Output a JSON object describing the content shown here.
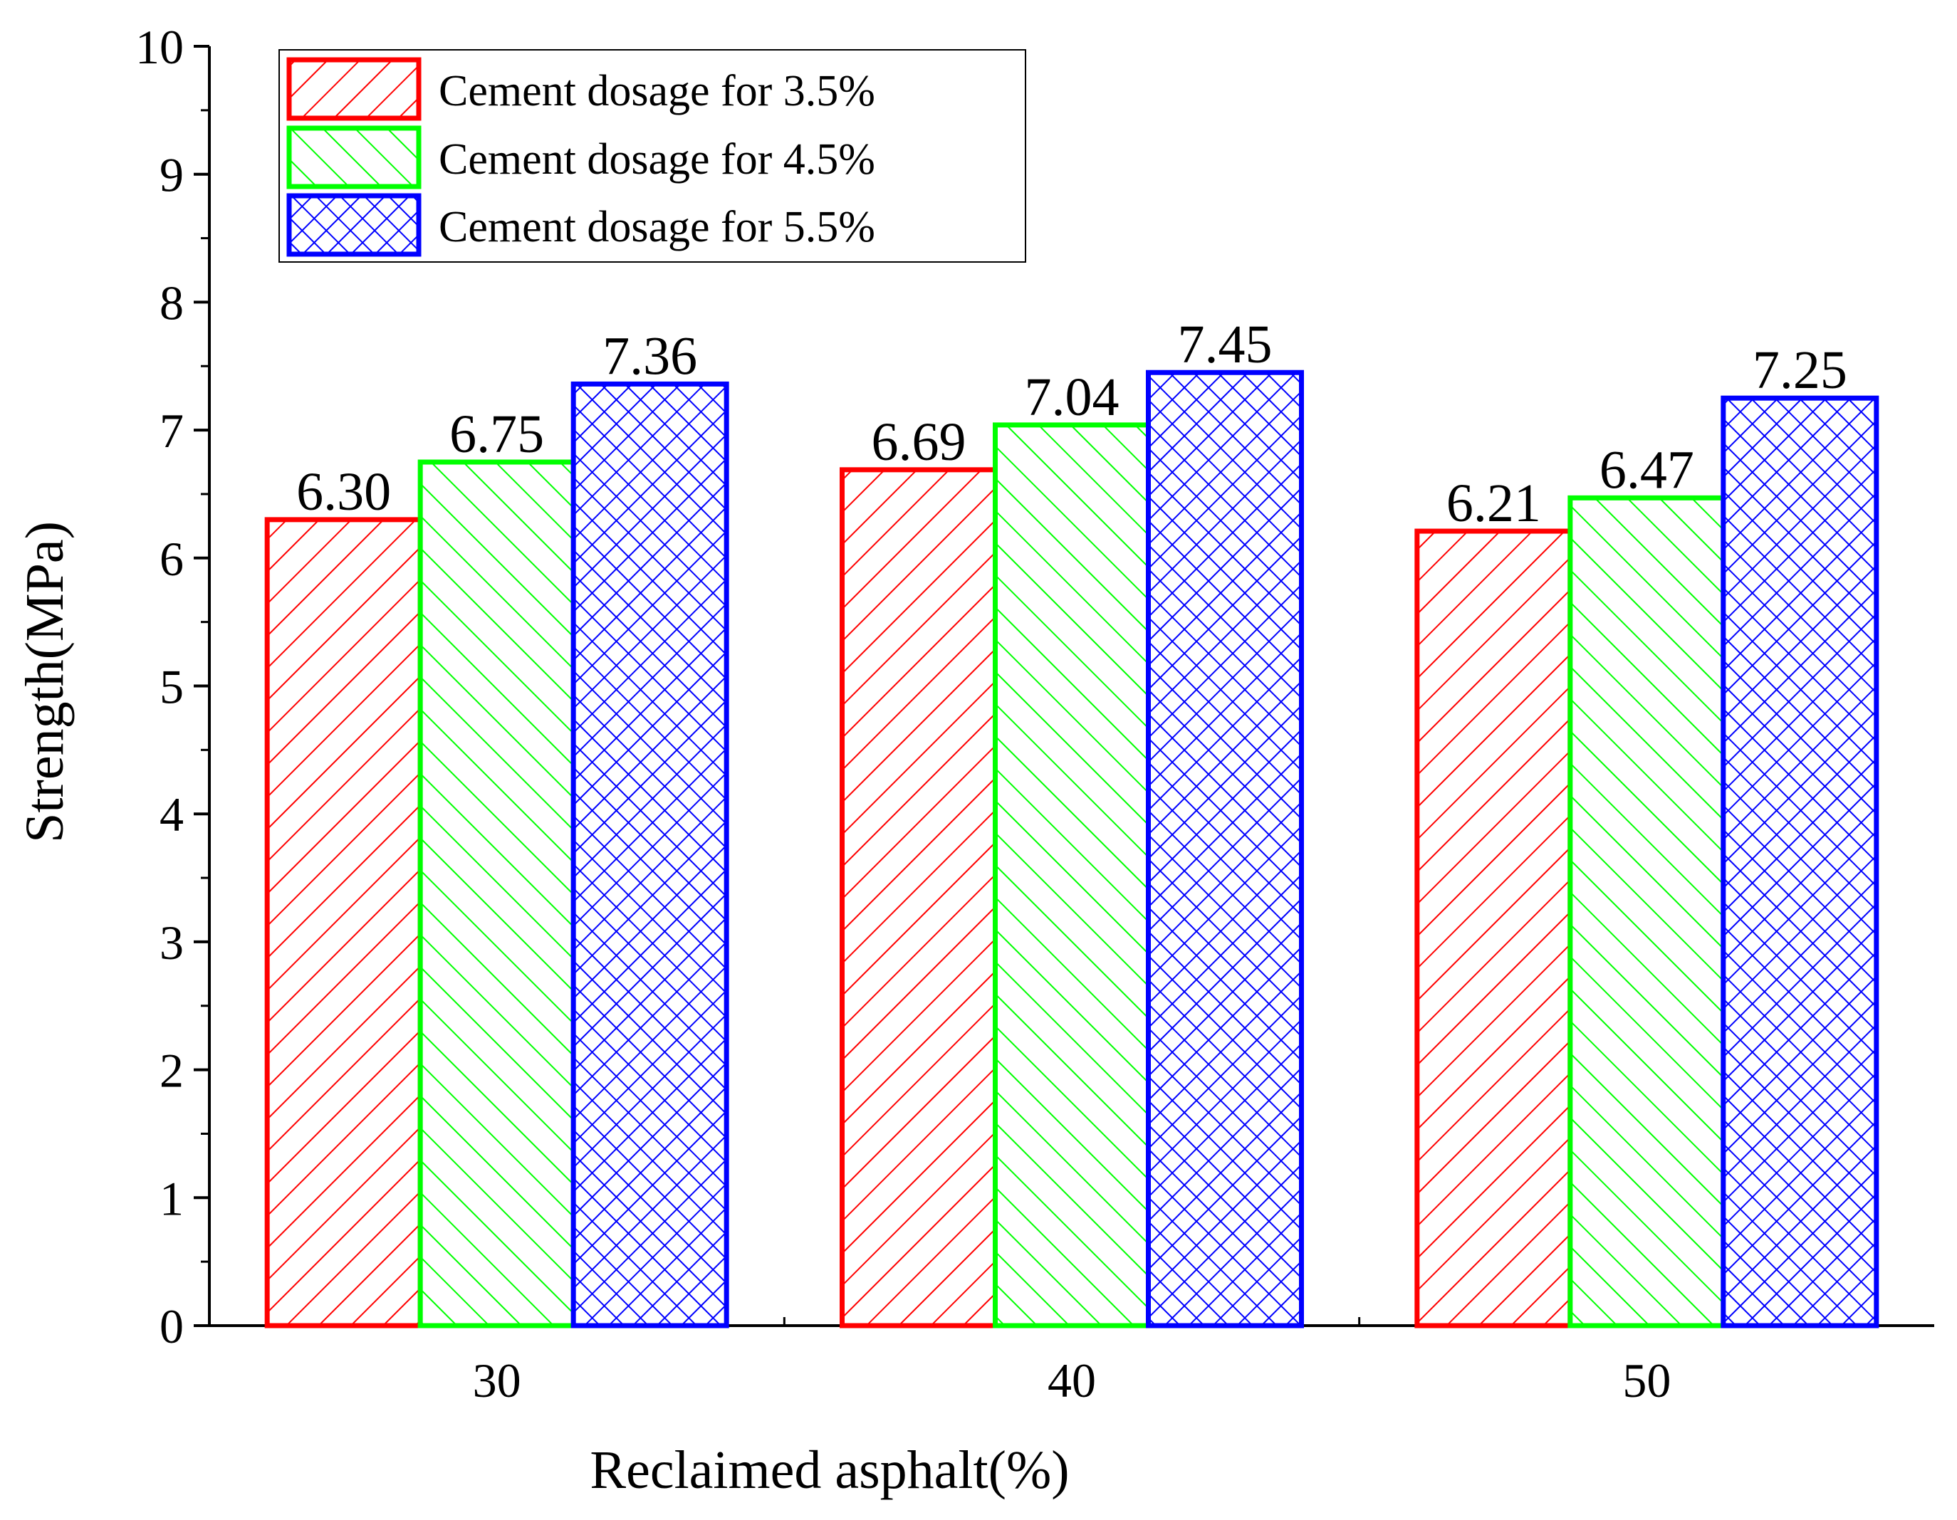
{
  "chart_data": {
    "type": "bar",
    "title": "",
    "xlabel": "Reclaimed asphalt(%)",
    "ylabel": "Strength(MPa)",
    "ylim": [
      0,
      10
    ],
    "yticks": [
      "0",
      "1",
      "2",
      "3",
      "4",
      "5",
      "6",
      "7",
      "8",
      "9",
      "10"
    ],
    "categories": [
      "30",
      "40",
      "50"
    ],
    "series": [
      {
        "name": "Cement dosage for 3.5%",
        "color": "#ff0000",
        "pattern": "hatch-right",
        "values": [
          6.3,
          6.69,
          6.21
        ],
        "labels": [
          "6.30",
          "6.69",
          "6.21"
        ]
      },
      {
        "name": "Cement dosage for 4.5%",
        "color": "#00ff00",
        "pattern": "hatch-left",
        "values": [
          6.75,
          7.04,
          6.47
        ],
        "labels": [
          "6.75",
          "7.04",
          "6.47"
        ]
      },
      {
        "name": "Cement dosage for 5.5%",
        "color": "#0000ff",
        "pattern": "cross-hatch",
        "values": [
          7.36,
          7.45,
          7.25
        ],
        "labels": [
          "7.36",
          "7.45",
          "7.25"
        ]
      }
    ],
    "legend_position": "top-left"
  }
}
